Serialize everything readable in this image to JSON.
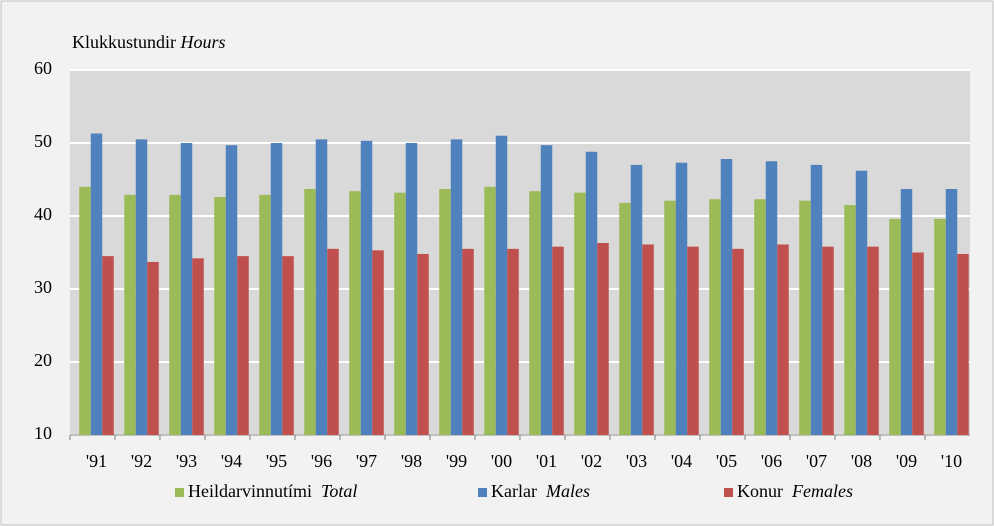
{
  "chart_data": {
    "type": "bar",
    "axis_label": {
      "text": "Klukkustundir",
      "italic": "Hours"
    },
    "categories": [
      "'91",
      "'92",
      "'93",
      "'94",
      "'95",
      "'96",
      "'97",
      "'98",
      "'99",
      "'00",
      "'01",
      "'02",
      "'03",
      "'04",
      "'05",
      "'06",
      "'07",
      "'08",
      "'09",
      "'10"
    ],
    "series": [
      {
        "name": "Heildarvinnutími",
        "name_en": "Total",
        "color": "#9bbb59",
        "values": [
          44.0,
          42.9,
          42.9,
          42.6,
          42.9,
          43.7,
          43.4,
          43.2,
          43.7,
          44.0,
          43.4,
          43.2,
          41.8,
          42.1,
          42.3,
          42.3,
          42.1,
          41.5,
          39.6,
          39.6
        ]
      },
      {
        "name": "Karlar",
        "name_en": "Males",
        "color": "#4f81bd",
        "values": [
          51.3,
          50.5,
          50.0,
          49.7,
          50.0,
          50.5,
          50.3,
          50.0,
          50.5,
          51.0,
          49.7,
          48.8,
          47.0,
          47.3,
          47.8,
          47.5,
          47.0,
          46.2,
          43.7,
          43.7
        ]
      },
      {
        "name": "Konur",
        "name_en": "Females",
        "color": "#c0504d",
        "values": [
          34.5,
          33.7,
          34.2,
          34.5,
          34.5,
          35.5,
          35.3,
          34.8,
          35.5,
          35.5,
          35.8,
          36.3,
          36.1,
          35.8,
          35.5,
          36.1,
          35.8,
          35.8,
          35.0,
          34.8
        ]
      }
    ],
    "ylim": [
      10,
      60
    ],
    "yticks": [
      10,
      20,
      30,
      40,
      50,
      60
    ],
    "grid": true
  }
}
